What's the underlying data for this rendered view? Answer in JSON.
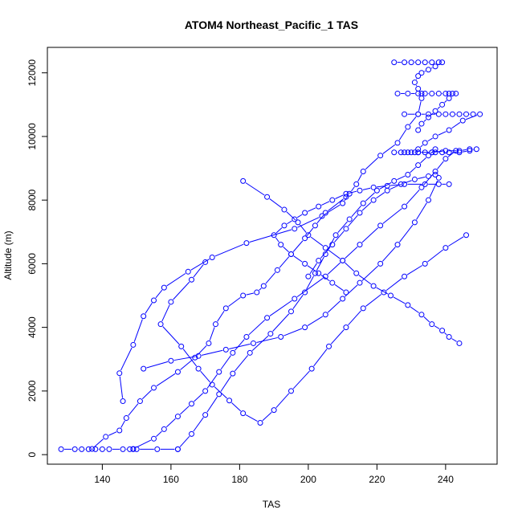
{
  "chart_data": {
    "type": "line",
    "title": "ATOM4 Northeast_Pacific_1 TAS",
    "xlabel": "TAS",
    "ylabel": "Altitude (m)",
    "xlim": [
      124,
      255
    ],
    "ylim": [
      -300,
      12800
    ],
    "x_ticks": [
      140,
      160,
      180,
      200,
      220,
      240
    ],
    "y_ticks": [
      0,
      2000,
      4000,
      6000,
      8000,
      10000,
      12000
    ],
    "grid": false,
    "series_color": "#0000ff",
    "marker": "open-circle",
    "series": [
      {
        "x": [
          128,
          132,
          134,
          136,
          138,
          140,
          142,
          146,
          148,
          149,
          150,
          156,
          162
        ],
        "y": [
          170,
          170,
          170,
          170,
          170,
          170,
          170,
          170,
          170,
          170,
          170,
          170,
          170
        ]
      },
      {
        "x": [
          137,
          141,
          145,
          147,
          151,
          155,
          162,
          167,
          171,
          173,
          176,
          181,
          185,
          187,
          191,
          195,
          199,
          202,
          205,
          211
        ],
        "y": [
          180,
          560,
          760,
          1150,
          1680,
          2100,
          2600,
          3050,
          3500,
          4100,
          4600,
          5000,
          5100,
          5300,
          5800,
          6300,
          6800,
          7200,
          7600,
          8100
        ]
      },
      {
        "x": [
          146,
          145,
          149,
          152,
          155,
          158,
          165,
          172,
          182,
          196,
          204,
          210,
          212,
          214,
          216,
          221,
          226,
          229,
          232,
          233
        ],
        "y": [
          1680,
          2560,
          3450,
          4350,
          4850,
          5250,
          5750,
          6200,
          6650,
          7100,
          7500,
          7900,
          8200,
          8500,
          8900,
          9400,
          9800,
          10300,
          10700,
          11200
        ]
      },
      {
        "x": [
          149,
          155,
          158,
          162,
          166,
          170,
          174,
          178,
          182,
          188,
          196,
          205,
          210,
          215,
          221,
          228,
          233,
          237,
          240,
          243
        ],
        "y": [
          180,
          500,
          800,
          1200,
          1600,
          2000,
          2600,
          3200,
          3700,
          4300,
          4900,
          5600,
          6100,
          6600,
          7200,
          7800,
          8400,
          8900,
          9300,
          9550
        ]
      },
      {
        "x": [
          162,
          166,
          170,
          174,
          178,
          183,
          189,
          195,
          199,
          202,
          205,
          208,
          212,
          216,
          220,
          225,
          229,
          232,
          235,
          237
        ],
        "y": [
          170,
          650,
          1250,
          1900,
          2550,
          3200,
          3800,
          4500,
          5100,
          5700,
          6300,
          6900,
          7400,
          7900,
          8300,
          8600,
          8800,
          9100,
          9400,
          9600
        ]
      },
      {
        "x": [
          170,
          166,
          160,
          157,
          163,
          168,
          172,
          177,
          181,
          186,
          190,
          195,
          201,
          206,
          211,
          216,
          222,
          228,
          234,
          240,
          246
        ],
        "y": [
          6050,
          5500,
          4800,
          4100,
          3400,
          2700,
          2200,
          1700,
          1300,
          1000,
          1400,
          2000,
          2700,
          3400,
          4000,
          4600,
          5100,
          5600,
          6000,
          6500,
          6900
        ]
      },
      {
        "x": [
          181,
          188,
          193,
          197,
          200,
          205,
          210,
          214,
          219,
          224,
          229,
          233,
          236,
          239,
          241,
          244
        ],
        "y": [
          8600,
          8100,
          7700,
          7300,
          6900,
          6500,
          6100,
          5700,
          5300,
          5000,
          4700,
          4400,
          4100,
          3900,
          3700,
          3500
        ]
      },
      {
        "x": [
          232,
          236,
          240,
          244,
          247,
          249,
          247,
          244,
          241,
          239,
          237,
          236,
          234,
          232,
          231,
          230,
          229,
          228,
          227,
          225
        ],
        "y": [
          9500,
          9500,
          9550,
          9550,
          9600,
          9600,
          9550,
          9500,
          9500,
          9500,
          9500,
          9500,
          9500,
          9500,
          9500,
          9500,
          9500,
          9500,
          9500,
          9500
        ]
      },
      {
        "x": [
          228,
          232,
          235,
          238,
          240,
          242,
          244,
          246,
          248,
          250,
          245,
          241,
          237,
          234,
          232
        ],
        "y": [
          10700,
          10700,
          10700,
          10700,
          10700,
          10700,
          10700,
          10700,
          10700,
          10700,
          10500,
          10200,
          10000,
          9800,
          9600
        ]
      },
      {
        "x": [
          226,
          229,
          232,
          234,
          236,
          238,
          240,
          241,
          242,
          243,
          241,
          239,
          237,
          235,
          233,
          232
        ],
        "y": [
          11350,
          11350,
          11350,
          11350,
          11350,
          11350,
          11350,
          11350,
          11350,
          11350,
          11200,
          11000,
          10800,
          10600,
          10400,
          10200
        ]
      },
      {
        "x": [
          225,
          228,
          230,
          232,
          234,
          236,
          238,
          239,
          237,
          235,
          233,
          232,
          231,
          232,
          233
        ],
        "y": [
          12330,
          12330,
          12330,
          12330,
          12330,
          12330,
          12330,
          12330,
          12200,
          12100,
          12000,
          11900,
          11700,
          11500,
          11350
        ]
      },
      {
        "x": [
          211,
          207,
          203,
          199,
          195,
          192,
          190,
          193,
          196,
          199,
          203,
          207,
          211,
          215,
          219,
          223,
          228,
          234,
          238,
          241
        ],
        "y": [
          5100,
          5400,
          5700,
          6000,
          6300,
          6600,
          6900,
          7200,
          7400,
          7600,
          7800,
          8000,
          8200,
          8300,
          8400,
          8450,
          8500,
          8500,
          8500,
          8500
        ]
      },
      {
        "x": [
          152,
          160,
          168,
          176,
          184,
          192,
          199,
          205,
          210,
          215,
          221,
          226,
          231,
          235,
          238
        ],
        "y": [
          2700,
          2950,
          3100,
          3300,
          3500,
          3700,
          4000,
          4400,
          4900,
          5400,
          6000,
          6600,
          7300,
          8000,
          8700
        ]
      },
      {
        "x": [
          200,
          203,
          207,
          211,
          215,
          219,
          223,
          227,
          231,
          235,
          237
        ],
        "y": [
          5600,
          6100,
          6600,
          7100,
          7600,
          8000,
          8300,
          8500,
          8650,
          8750,
          8800
        ]
      }
    ]
  }
}
